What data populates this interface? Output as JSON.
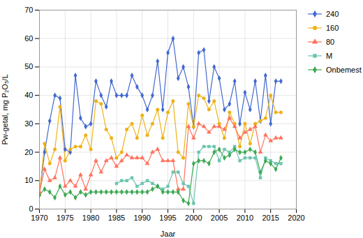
{
  "chart_data": {
    "type": "line",
    "xlabel": "Jaar",
    "ylabel": "Pw-getal, mg P₂O₅/L",
    "x": [
      1970,
      1971,
      1972,
      1973,
      1974,
      1975,
      1976,
      1977,
      1978,
      1979,
      1980,
      1981,
      1982,
      1983,
      1984,
      1985,
      1986,
      1987,
      1988,
      1989,
      1990,
      1991,
      1992,
      1993,
      1994,
      1995,
      1996,
      1997,
      1998,
      1999,
      2000,
      2001,
      2002,
      2003,
      2004,
      2005,
      2006,
      2007,
      2008,
      2009,
      2010,
      2011,
      2012,
      2013,
      2014,
      2015,
      2016,
      2017
    ],
    "series": [
      {
        "name": "240",
        "marker": "diamond",
        "values": [
          5,
          20,
          31,
          40,
          39,
          21,
          20,
          47,
          32,
          29,
          30,
          45,
          40,
          36,
          45,
          40,
          40,
          40,
          47,
          43,
          40,
          35,
          40,
          52,
          35,
          55,
          60,
          46,
          50,
          43,
          29,
          55,
          56,
          38,
          50,
          46,
          35,
          37,
          45,
          30,
          41,
          35,
          45,
          31,
          47,
          30,
          45,
          45
        ]
      },
      {
        "name": "160",
        "marker": "circle",
        "values": [
          5,
          23,
          16,
          21,
          36,
          17,
          21,
          22,
          22,
          26,
          21,
          38,
          37,
          28,
          25,
          18,
          20,
          28,
          30,
          25,
          33,
          26,
          30,
          35,
          25,
          34,
          38,
          20,
          18,
          37,
          29,
          40,
          39,
          35,
          38,
          30,
          25,
          34,
          30,
          22,
          30,
          23,
          30,
          31,
          32,
          40,
          34,
          34
        ]
      },
      {
        "name": "80",
        "marker": "triangle",
        "values": [
          6,
          14,
          10,
          11,
          18,
          8,
          10,
          8,
          12,
          7,
          12,
          17,
          13,
          17,
          18,
          15,
          17,
          19,
          18,
          18,
          18,
          16,
          20,
          21,
          17,
          17,
          17,
          7,
          7,
          29,
          25,
          30,
          29,
          27,
          29,
          29,
          28,
          32,
          29,
          25,
          27,
          28,
          29,
          20,
          26,
          24,
          25,
          25
        ]
      },
      {
        "name": "M",
        "marker": "square",
        "values": [
          null,
          null,
          null,
          null,
          null,
          null,
          null,
          null,
          null,
          null,
          null,
          null,
          null,
          null,
          null,
          9,
          10,
          10,
          11,
          8,
          9,
          10,
          9,
          8,
          7,
          8,
          13,
          13,
          9,
          8,
          2,
          20,
          22,
          22,
          22,
          17,
          21,
          20,
          22,
          17,
          18,
          18,
          18,
          11,
          18,
          17,
          16,
          16
        ]
      },
      {
        "name": "Onbemest",
        "marker": "diamond",
        "values": [
          5,
          7,
          6,
          4,
          8,
          5,
          6,
          4,
          6,
          5,
          6,
          6,
          6,
          6,
          6,
          6,
          6,
          6,
          6,
          6,
          6,
          6,
          7,
          8,
          6,
          6,
          6,
          6,
          3,
          2,
          16,
          17,
          17,
          16,
          20,
          21,
          18,
          19,
          21,
          20,
          20,
          21,
          20,
          13,
          17,
          16,
          14,
          18
        ]
      }
    ],
    "xlim": [
      1970,
      2020
    ],
    "xticks": [
      1970,
      1975,
      1980,
      1985,
      1990,
      1995,
      2000,
      2005,
      2010,
      2015,
      2020
    ],
    "ylim": [
      0,
      70
    ],
    "yticks": [
      0,
      10,
      20,
      30,
      40,
      50,
      60,
      70
    ],
    "grid": true,
    "legend": "right"
  }
}
